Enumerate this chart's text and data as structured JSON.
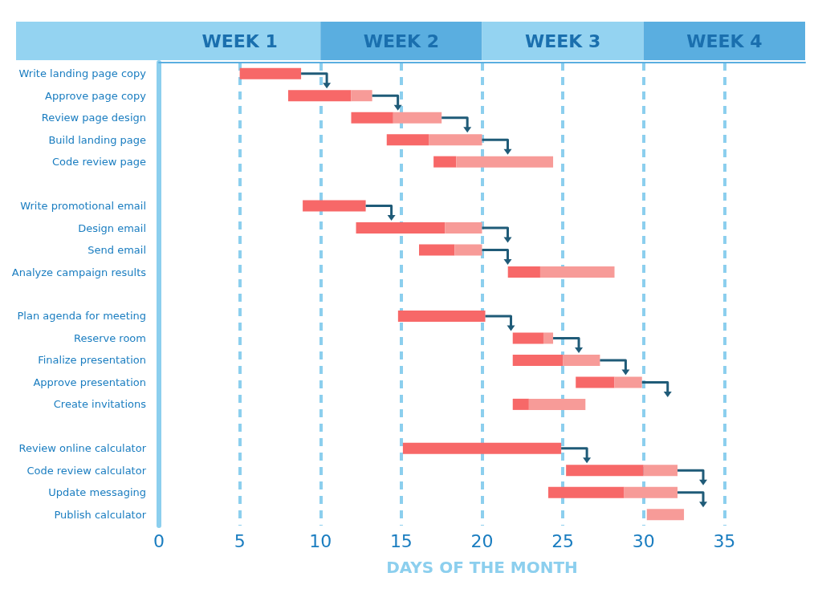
{
  "chart_data": {
    "type": "bar",
    "orientation": "horizontal",
    "xlabel": "DAYS OF THE MONTH",
    "categories": [
      "Write landing page copy",
      "Approve page copy",
      "Review page design",
      "Build landing page",
      "Code review page",
      null,
      "Write promotional email",
      "Design email",
      "Send email",
      "Analyze campaign results",
      null,
      "Plan agenda for meeting",
      "Reserve room",
      "Finalize presentation",
      "Approve presentation",
      "Create invitations",
      null,
      "Review online calculator",
      "Code review calculator",
      "Update messaging",
      "Publish calculator"
    ],
    "series": [
      {
        "color": "#f76868",
        "base": [
          5,
          8,
          11.9,
          14.1,
          17,
          null,
          8.9,
          12.2,
          16.1,
          21.6,
          null,
          14.8,
          21.9,
          21.9,
          25.8,
          21.9,
          null,
          15.1,
          25.2,
          24.1,
          null
        ],
        "values": [
          3.8,
          3.9,
          2.6,
          2.6,
          1.4,
          null,
          3.9,
          5.5,
          2.2,
          2,
          null,
          5.4,
          1.9,
          3.1,
          2.4,
          1,
          null,
          9.8,
          4.8,
          4.7,
          null
        ]
      },
      {
        "color": "#f79b98",
        "base": [
          null,
          11.9,
          14.5,
          16.7,
          18.4,
          null,
          null,
          17.7,
          18.3,
          23.6,
          null,
          null,
          23.8,
          25,
          28.2,
          22.9,
          null,
          null,
          30,
          28.8,
          30.2
        ],
        "values": [
          null,
          1.3,
          3,
          3.3,
          6,
          null,
          null,
          2.3,
          1.7,
          4.6,
          null,
          null,
          0.6,
          2.3,
          1.7,
          3.5,
          null,
          null,
          2.1,
          3.3,
          2.3
        ]
      }
    ],
    "xlim": [
      0,
      40
    ],
    "xticks": [
      0,
      5,
      10,
      15,
      20,
      25,
      30,
      35
    ],
    "grid": "x",
    "annotations": [
      "WEEK 1",
      "WEEK 2",
      "WEEK 3",
      "WEEK 4"
    ]
  }
}
